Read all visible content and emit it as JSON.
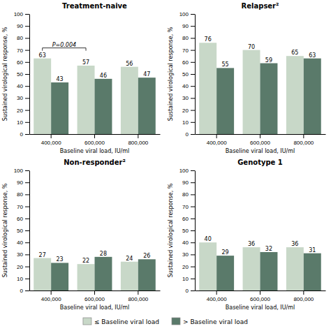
{
  "chart_data": [
    {
      "type": "bar",
      "title": "Treatment-naive",
      "xlabel": "Baseline viral load, IU/ml",
      "ylabel": "Sustained virological response, %",
      "categories": [
        "400,000",
        "600,000",
        "800,000"
      ],
      "series": [
        {
          "name": "≤ Baseline viral load",
          "color": "#c8d8c8",
          "values": [
            63,
            57,
            56
          ]
        },
        {
          "name": "> Baseline viral load",
          "color": "#5a7a6a",
          "values": [
            43,
            46,
            47
          ]
        }
      ],
      "ylim": [
        0,
        100
      ],
      "yticks": [
        0,
        10,
        20,
        30,
        40,
        50,
        60,
        70,
        80,
        90,
        100
      ],
      "data_labels": true,
      "legend": "bottom",
      "annotations": [
        {
          "text": "P=0.004",
          "between": [
            0,
            1
          ]
        }
      ]
    },
    {
      "type": "bar",
      "title": "Relapser²",
      "xlabel": "Baseline viral load, IU/ml",
      "ylabel": "Sustained virological response, %",
      "categories": [
        "400,000",
        "600,000",
        "800,000"
      ],
      "series": [
        {
          "name": "≤ Baseline viral load",
          "color": "#c8d8c8",
          "values": [
            76,
            70,
            65
          ]
        },
        {
          "name": "> Baseline viral load",
          "color": "#5a7a6a",
          "values": [
            55,
            59,
            63
          ]
        }
      ],
      "ylim": [
        0,
        100
      ],
      "yticks": [
        0,
        10,
        20,
        30,
        40,
        50,
        60,
        70,
        80,
        90,
        100
      ],
      "data_labels": true
    },
    {
      "type": "bar",
      "title": "Non-responder²",
      "xlabel": "Baseline viral load, IU/ml",
      "ylabel": "Sustained virological response, %",
      "categories": [
        "400,000",
        "600,000",
        "800,000"
      ],
      "series": [
        {
          "name": "≤ Baseline viral load",
          "color": "#c8d8c8",
          "values": [
            27,
            22,
            24
          ]
        },
        {
          "name": "> Baseline viral load",
          "color": "#5a7a6a",
          "values": [
            23,
            28,
            26
          ]
        }
      ],
      "ylim": [
        0,
        100
      ],
      "yticks": [
        0,
        10,
        20,
        30,
        40,
        50,
        60,
        70,
        80,
        90,
        100
      ],
      "data_labels": true
    },
    {
      "type": "bar",
      "title": "Genotype 1",
      "xlabel": "Baseline viral load, IU/ml",
      "ylabel": "Sustained virological response, %",
      "categories": [
        "400,000",
        "600,000",
        "800,000"
      ],
      "series": [
        {
          "name": "≤ Baseline viral load",
          "color": "#c8d8c8",
          "values": [
            40,
            36,
            36
          ]
        },
        {
          "name": "> Baseline viral load",
          "color": "#5a7a6a",
          "values": [
            29,
            32,
            31
          ]
        }
      ],
      "ylim": [
        0,
        100
      ],
      "yticks": [
        0,
        10,
        20,
        30,
        40,
        50,
        60,
        70,
        80,
        90,
        100
      ],
      "data_labels": true
    }
  ]
}
